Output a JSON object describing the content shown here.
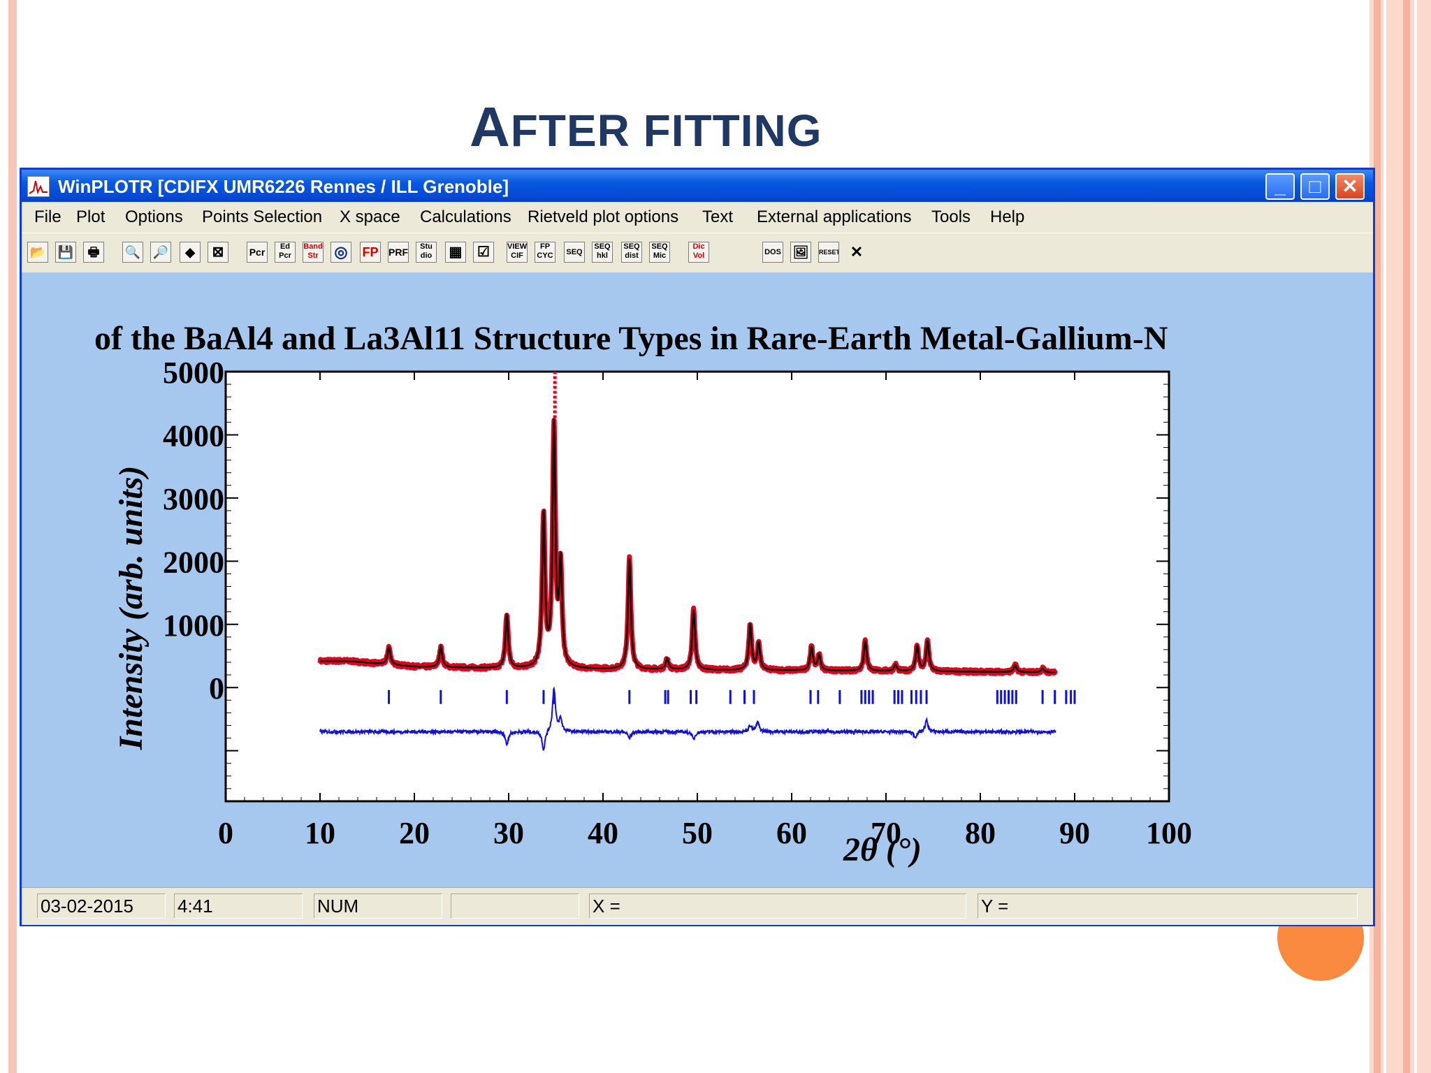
{
  "slide": {
    "title_cap": "A",
    "title_rest": "FTER FITTING"
  },
  "window": {
    "title": "WinPLOTR [CDIFX UMR6226 Rennes / ILL Grenoble]",
    "minimize_label": "_",
    "maximize_label": "□",
    "close_label": "✕"
  },
  "menu": {
    "items": [
      "File",
      "Plot",
      "Options",
      "Points Selection",
      "X space",
      "Calculations",
      "Rietveld plot options",
      "Text",
      "External applications",
      "Tools",
      "Help"
    ]
  },
  "toolbar": {
    "buttons": [
      {
        "icon": "open-folder-icon",
        "label": "📂"
      },
      {
        "icon": "save-icon",
        "label": "💾"
      },
      {
        "icon": "print-icon",
        "label": "🖶"
      },
      {
        "icon": "print-preview-icon",
        "label": "🔍"
      },
      {
        "icon": "zoom-icon",
        "label": "🔎"
      },
      {
        "icon": "expand-horizontal-icon",
        "label": "◆"
      },
      {
        "icon": "fit-window-icon",
        "label": "⊠"
      },
      {
        "icon": "pcr-icon",
        "label": "Pcr"
      },
      {
        "icon": "ed-pcr-icon",
        "label": "Ed Pcr"
      },
      {
        "icon": "band-str-icon",
        "label": "Band Str"
      },
      {
        "icon": "target-icon",
        "label": "◎"
      },
      {
        "icon": "fp-icon",
        "label": "FP"
      },
      {
        "icon": "prf-icon",
        "label": "PRF"
      },
      {
        "icon": "studio-icon",
        "label": "Stu dio"
      },
      {
        "icon": "grid-icon",
        "label": "▦"
      },
      {
        "icon": "checkbox-icon",
        "label": "☑"
      },
      {
        "icon": "view-cif-icon",
        "label": "VIEW CIF"
      },
      {
        "icon": "fp-cyc-icon",
        "label": "FP CYC"
      },
      {
        "icon": "seq-icon",
        "label": "SEQ"
      },
      {
        "icon": "seq-hkl-icon",
        "label": "SEQ hkl"
      },
      {
        "icon": "seq-dist-icon",
        "label": "SEQ dist"
      },
      {
        "icon": "seq-mic-icon",
        "label": "SEQ Mic"
      },
      {
        "icon": "dic-vol-icon",
        "label": "Dic Vol"
      },
      {
        "icon": "dos-icon",
        "label": "DOS"
      },
      {
        "icon": "picture-icon",
        "label": "🖼"
      },
      {
        "icon": "reset-icon",
        "label": "RESET"
      },
      {
        "icon": "close-x-icon",
        "label": "✕"
      }
    ]
  },
  "status": {
    "date": "03-02-2015",
    "time": "4:41",
    "num": "NUM",
    "empty": "",
    "x": "X =",
    "y": "Y ="
  },
  "colors": {
    "observed": "#e8001c",
    "calculated": "#000000",
    "difference": "#1010d8",
    "bragg": "#1010d8",
    "plot_bg": "#a6c8ee"
  },
  "chart_data": {
    "type": "line",
    "title": "of the BaAl4 and La3Al11 Structure Types in Rare-Earth Metal-Gallium-N",
    "xlabel": "2θ (°)",
    "ylabel": "Intensity (arb. units)",
    "xlim": [
      0,
      100
    ],
    "ylim": [
      -1800,
      5000
    ],
    "x_ticks": [
      0,
      10,
      20,
      30,
      40,
      50,
      60,
      70,
      80,
      90,
      100
    ],
    "y_ticks": [
      0,
      1000,
      2000,
      3000,
      4000,
      5000
    ],
    "background": {
      "x": [
        10,
        13,
        16,
        20,
        30,
        40,
        50,
        60,
        70,
        80,
        88
      ],
      "y": [
        420,
        420,
        380,
        330,
        300,
        290,
        280,
        270,
        260,
        250,
        240
      ]
    },
    "peaks": [
      {
        "pos": 17.3,
        "height": 280
      },
      {
        "pos": 22.8,
        "height": 320
      },
      {
        "pos": 29.8,
        "height": 850
      },
      {
        "pos": 33.7,
        "height": 2400
      },
      {
        "pos": 34.8,
        "height": 3800
      },
      {
        "pos": 35.5,
        "height": 1600
      },
      {
        "pos": 42.8,
        "height": 1750
      },
      {
        "pos": 46.8,
        "height": 170
      },
      {
        "pos": 49.6,
        "height": 950
      },
      {
        "pos": 55.6,
        "height": 720
      },
      {
        "pos": 56.5,
        "height": 420
      },
      {
        "pos": 62.1,
        "height": 370
      },
      {
        "pos": 62.9,
        "height": 250
      },
      {
        "pos": 67.8,
        "height": 480
      },
      {
        "pos": 71.0,
        "height": 100
      },
      {
        "pos": 73.3,
        "height": 400
      },
      {
        "pos": 74.4,
        "height": 480
      },
      {
        "pos": 83.7,
        "height": 110
      },
      {
        "pos": 86.6,
        "height": 60
      }
    ],
    "observed_peak_max": 5000,
    "bragg_y": -150,
    "bragg_positions": [
      17.3,
      22.8,
      29.8,
      33.7,
      34.8,
      42.8,
      46.6,
      46.9,
      49.3,
      49.9,
      53.5,
      55.0,
      56.0,
      62.0,
      62.8,
      65.1,
      67.4,
      67.8,
      68.2,
      68.6,
      70.9,
      71.3,
      71.7,
      72.7,
      73.2,
      73.7,
      74.3,
      81.8,
      82.2,
      82.6,
      83.0,
      83.4,
      83.8,
      86.6,
      87.9,
      89.1,
      89.6,
      90.0
    ],
    "difference_offset": -700,
    "difference": [
      {
        "pos": 29.8,
        "amp": -200
      },
      {
        "pos": 33.7,
        "amp": -300
      },
      {
        "pos": 34.8,
        "amp": 700
      },
      {
        "pos": 35.5,
        "amp": 200
      },
      {
        "pos": 42.8,
        "amp": -100
      },
      {
        "pos": 49.6,
        "amp": -120
      },
      {
        "pos": 55.6,
        "amp": 100
      },
      {
        "pos": 56.4,
        "amp": 150
      },
      {
        "pos": 74.3,
        "amp": 180
      },
      {
        "pos": 73.1,
        "amp": -90
      }
    ]
  }
}
